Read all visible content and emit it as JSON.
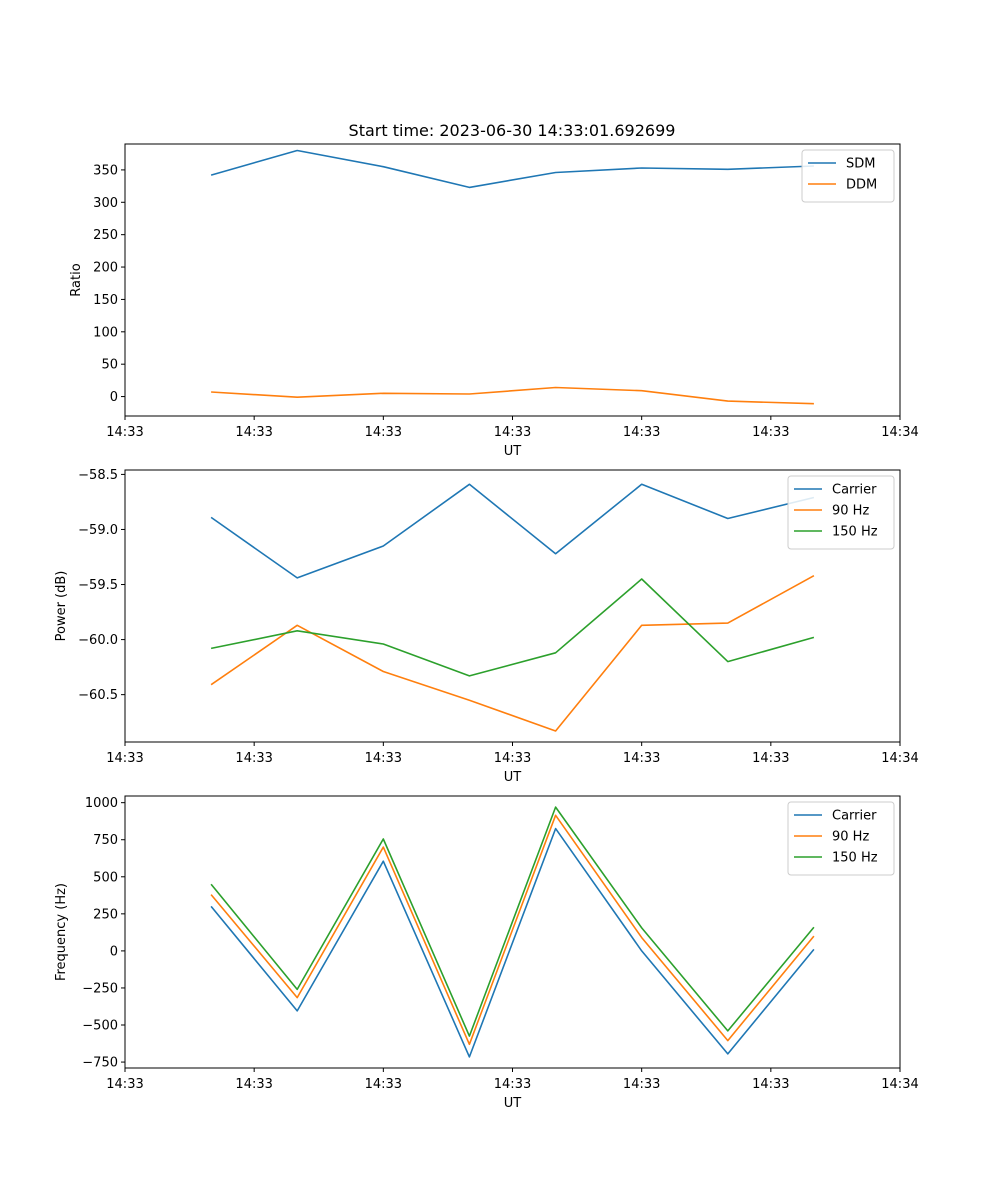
{
  "figure": {
    "title": "Start time: 2023-06-30 14:33:01.692699"
  },
  "chart_data": [
    {
      "type": "line",
      "title": "Start time: 2023-06-30 14:33:01.692699",
      "xlabel": "UT",
      "ylabel": "Ratio",
      "x": [
        1,
        2,
        3,
        4,
        5,
        6,
        7,
        8
      ],
      "xlim": [
        0,
        9
      ],
      "xticks": [
        0,
        1.5,
        3,
        4.5,
        6,
        7.5,
        9
      ],
      "xtick_labels": [
        "14:33",
        "14:33",
        "14:33",
        "14:33",
        "14:33",
        "14:33",
        "14:34"
      ],
      "ylim": [
        -30,
        390
      ],
      "yticks": [
        0,
        50,
        100,
        150,
        200,
        250,
        300,
        350
      ],
      "ytick_labels": [
        "0",
        "50",
        "100",
        "150",
        "200",
        "250",
        "300",
        "350"
      ],
      "grid": false,
      "legend_position": "top-right",
      "series": [
        {
          "name": "SDM",
          "color": "#1f77b4",
          "values": [
            342,
            380,
            355,
            323,
            346,
            353,
            351,
            356
          ]
        },
        {
          "name": "DDM",
          "color": "#ff7f0e",
          "values": [
            7,
            -1,
            5,
            4,
            14,
            9,
            -7,
            -11
          ]
        }
      ]
    },
    {
      "type": "line",
      "xlabel": "UT",
      "ylabel": "Power (dB)",
      "x": [
        1,
        2,
        3,
        4,
        5,
        6,
        7,
        8
      ],
      "xlim": [
        0,
        9
      ],
      "xticks": [
        0,
        1.5,
        3,
        4.5,
        6,
        7.5,
        9
      ],
      "xtick_labels": [
        "14:33",
        "14:33",
        "14:33",
        "14:33",
        "14:33",
        "14:33",
        "14:34"
      ],
      "ylim": [
        -60.93,
        -58.46
      ],
      "yticks": [
        -58.5,
        -59.0,
        -59.5,
        -60.0,
        -60.5
      ],
      "ytick_labels": [
        "−58.5",
        "−59.0",
        "−59.5",
        "−60.0",
        "−60.5"
      ],
      "grid": false,
      "legend_position": "top-right",
      "series": [
        {
          "name": "Carrier",
          "color": "#1f77b4",
          "values": [
            -58.89,
            -59.44,
            -59.15,
            -58.59,
            -59.22,
            -58.59,
            -58.9,
            -58.71
          ]
        },
        {
          "name": "90 Hz",
          "color": "#ff7f0e",
          "values": [
            -60.41,
            -59.87,
            -60.29,
            -60.55,
            -60.83,
            -59.87,
            -59.85,
            -59.42
          ]
        },
        {
          "name": "150 Hz",
          "color": "#2ca02c",
          "values": [
            -60.08,
            -59.92,
            -60.04,
            -60.33,
            -60.12,
            -59.45,
            -60.2,
            -59.98
          ]
        }
      ]
    },
    {
      "type": "line",
      "xlabel": "UT",
      "ylabel": "Frequency (Hz)",
      "x": [
        1,
        2,
        3,
        4,
        5,
        6,
        7,
        8
      ],
      "xlim": [
        0,
        9
      ],
      "xticks": [
        0,
        1.5,
        3,
        4.5,
        6,
        7.5,
        9
      ],
      "xtick_labels": [
        "14:33",
        "14:33",
        "14:33",
        "14:33",
        "14:33",
        "14:33",
        "14:34"
      ],
      "ylim": [
        -790,
        1045
      ],
      "yticks": [
        1000,
        750,
        500,
        250,
        0,
        -250,
        -500,
        -750
      ],
      "ytick_labels": [
        "1000",
        "750",
        "500",
        "250",
        "0",
        "−250",
        "−500",
        "−750"
      ],
      "grid": false,
      "legend_position": "top-right",
      "series": [
        {
          "name": "Carrier",
          "color": "#1f77b4",
          "values": [
            300,
            -405,
            605,
            -715,
            825,
            0,
            -695,
            10
          ]
        },
        {
          "name": "90 Hz",
          "color": "#ff7f0e",
          "values": [
            380,
            -315,
            700,
            -630,
            915,
            90,
            -605,
            100
          ]
        },
        {
          "name": "150 Hz",
          "color": "#2ca02c",
          "values": [
            450,
            -260,
            755,
            -575,
            970,
            155,
            -540,
            160
          ]
        }
      ]
    }
  ]
}
